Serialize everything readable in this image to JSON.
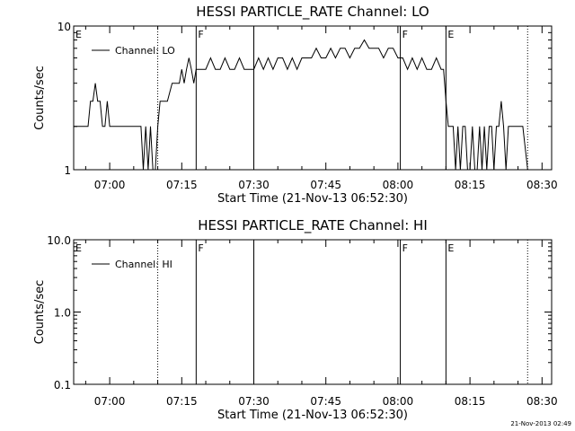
{
  "footer": {
    "stamp": "21-Nov-2013 02:49"
  },
  "chart_data": [
    {
      "type": "line",
      "title": "HESSI PARTICLE_RATE Channel: LO",
      "xlabel": "Start Time (21-Nov-13 06:52:30)",
      "ylabel": "Counts/sec",
      "y_scale": "log",
      "xlim": [
        "06:52:30",
        "08:32:00"
      ],
      "ylim": [
        1,
        10
      ],
      "x_ticks": [
        "07:00",
        "07:15",
        "07:30",
        "07:45",
        "08:00",
        "08:15",
        "08:30"
      ],
      "y_ticks": [
        "1",
        "10"
      ],
      "legend": {
        "label": "Channel: LO",
        "position": "top-left"
      },
      "markers": [
        {
          "time": "06:52:30",
          "label": "E",
          "style": "solid"
        },
        {
          "time": "07:10:00",
          "label": "",
          "style": "dotted"
        },
        {
          "time": "07:18:00",
          "label": "F",
          "style": "solid"
        },
        {
          "time": "07:30:00",
          "label": "",
          "style": "solid"
        },
        {
          "time": "08:00:30",
          "label": "F",
          "style": "solid"
        },
        {
          "time": "08:10:00",
          "label": "E",
          "style": "solid"
        },
        {
          "time": "08:27:00",
          "label": "",
          "style": "dotted"
        }
      ],
      "series": [
        {
          "name": "Channel: LO",
          "x": [
            "06:52:30",
            "06:54:00",
            "06:55:30",
            "06:56:00",
            "06:56:30",
            "06:57:00",
            "06:57:30",
            "06:58:00",
            "06:58:30",
            "06:59:00",
            "06:59:30",
            "07:00:00",
            "07:01:00",
            "07:03:00",
            "07:05:00",
            "07:06:30",
            "07:07:00",
            "07:07:30",
            "07:08:00",
            "07:08:30",
            "07:09:00",
            "07:09:30",
            "07:10:00",
            "07:10:30",
            "07:11:00",
            "07:11:30",
            "07:12:00",
            "07:13:00",
            "07:14:00",
            "07:14:30",
            "07:15:00",
            "07:15:30",
            "07:16:00",
            "07:16:30",
            "07:17:00",
            "07:17:30",
            "07:18:00",
            "07:18:30",
            "07:19:00",
            "07:20:00",
            "07:21:00",
            "07:22:00",
            "07:23:00",
            "07:24:00",
            "07:25:00",
            "07:26:00",
            "07:27:00",
            "07:28:00",
            "07:29:00",
            "07:30:00",
            "07:31:00",
            "07:32:00",
            "07:33:00",
            "07:34:00",
            "07:35:00",
            "07:36:00",
            "07:37:00",
            "07:38:00",
            "07:39:00",
            "07:40:00",
            "07:41:00",
            "07:42:00",
            "07:43:00",
            "07:44:00",
            "07:45:00",
            "07:46:00",
            "07:47:00",
            "07:48:00",
            "07:49:00",
            "07:50:00",
            "07:51:00",
            "07:52:00",
            "07:53:00",
            "07:54:00",
            "07:55:00",
            "07:56:00",
            "07:57:00",
            "07:58:00",
            "07:59:00",
            "08:00:00",
            "08:01:00",
            "08:02:00",
            "08:03:00",
            "08:04:00",
            "08:05:00",
            "08:06:00",
            "08:07:00",
            "08:08:00",
            "08:09:00",
            "08:09:30",
            "08:10:00",
            "08:10:30",
            "08:11:00",
            "08:11:30",
            "08:12:00",
            "08:12:30",
            "08:13:00",
            "08:13:30",
            "08:14:00",
            "08:14:30",
            "08:15:00",
            "08:15:30",
            "08:16:00",
            "08:16:30",
            "08:17:00",
            "08:17:30",
            "08:18:00",
            "08:18:30",
            "08:19:00",
            "08:19:30",
            "08:20:00",
            "08:20:30",
            "08:21:00",
            "08:21:30",
            "08:22:00",
            "08:22:30",
            "08:23:00",
            "08:23:30",
            "08:24:00",
            "08:25:00",
            "08:26:00",
            "08:27:00"
          ],
          "y": [
            2,
            2,
            2,
            3,
            3,
            4,
            3,
            3,
            2,
            2,
            3,
            2,
            2,
            2,
            2,
            2,
            1,
            2,
            1,
            2,
            1,
            1,
            2,
            3,
            3,
            3,
            3,
            4,
            4,
            4,
            5,
            4,
            5,
            6,
            5,
            4,
            5,
            5,
            5,
            5,
            6,
            5,
            5,
            6,
            5,
            5,
            6,
            5,
            5,
            5,
            6,
            5,
            6,
            5,
            6,
            6,
            5,
            6,
            5,
            6,
            6,
            6,
            7,
            6,
            6,
            7,
            6,
            7,
            7,
            6,
            7,
            7,
            8,
            7,
            7,
            7,
            6,
            7,
            7,
            6,
            6,
            5,
            6,
            5,
            6,
            5,
            5,
            6,
            5,
            5,
            3,
            2,
            2,
            2,
            1,
            2,
            1,
            2,
            2,
            1,
            1,
            2,
            1,
            1,
            2,
            1,
            2,
            1,
            2,
            2,
            1,
            2,
            2,
            3,
            2,
            1,
            2,
            2,
            2,
            2,
            2,
            1
          ]
        }
      ]
    },
    {
      "type": "line",
      "title": "HESSI PARTICLE_RATE Channel: HI",
      "xlabel": "Start Time (21-Nov-13 06:52:30)",
      "ylabel": "Counts/sec",
      "y_scale": "log",
      "xlim": [
        "06:52:30",
        "08:32:00"
      ],
      "ylim": [
        0.1,
        10
      ],
      "x_ticks": [
        "07:00",
        "07:15",
        "07:30",
        "07:45",
        "08:00",
        "08:15",
        "08:30"
      ],
      "y_ticks": [
        "0.1",
        "1.0",
        "10.0"
      ],
      "legend": {
        "label": "Channel: HI",
        "position": "top-left"
      },
      "markers": [
        {
          "time": "06:52:30",
          "label": "E",
          "style": "solid"
        },
        {
          "time": "07:10:00",
          "label": "",
          "style": "dotted"
        },
        {
          "time": "07:18:00",
          "label": "F",
          "style": "solid"
        },
        {
          "time": "07:30:00",
          "label": "",
          "style": "solid"
        },
        {
          "time": "08:00:30",
          "label": "F",
          "style": "solid"
        },
        {
          "time": "08:10:00",
          "label": "E",
          "style": "solid"
        },
        {
          "time": "08:27:00",
          "label": "",
          "style": "dotted"
        }
      ],
      "series": [
        {
          "name": "Channel: HI",
          "x": [],
          "y": []
        }
      ]
    }
  ]
}
